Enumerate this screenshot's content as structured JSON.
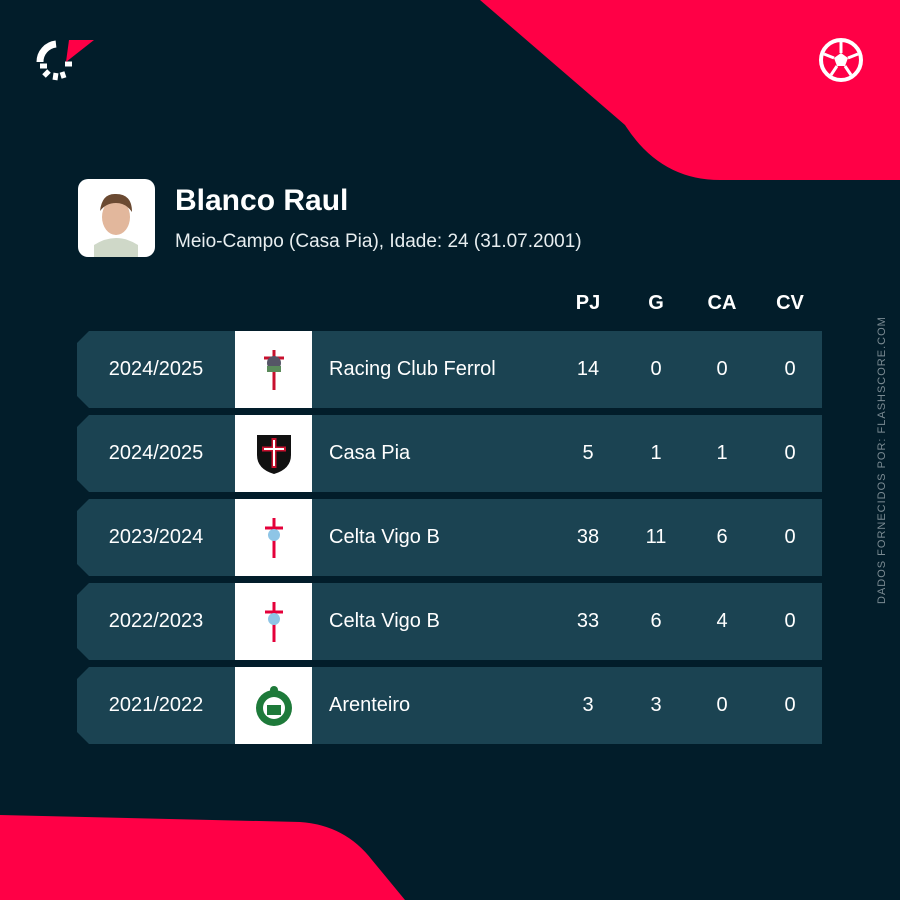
{
  "player": {
    "name": "Blanco Raul",
    "info": "Meio-Campo (Casa Pia), Idade: 24 (31.07.2001)"
  },
  "columns": [
    "PJ",
    "G",
    "CA",
    "CV"
  ],
  "rows": [
    {
      "season": "2024/2025",
      "team": "Racing Club Ferrol",
      "crest": "racing-ferrol-crest",
      "pj": "14",
      "g": "0",
      "ca": "0",
      "cv": "0"
    },
    {
      "season": "2024/2025",
      "team": "Casa Pia",
      "crest": "casa-pia-crest",
      "pj": "5",
      "g": "1",
      "ca": "1",
      "cv": "0"
    },
    {
      "season": "2023/2024",
      "team": "Celta Vigo B",
      "crest": "celta-vigo-crest",
      "pj": "38",
      "g": "11",
      "ca": "6",
      "cv": "0"
    },
    {
      "season": "2022/2023",
      "team": "Celta Vigo B",
      "crest": "celta-vigo-crest",
      "pj": "33",
      "g": "6",
      "ca": "4",
      "cv": "0"
    },
    {
      "season": "2021/2022",
      "team": "Arenteiro",
      "crest": "arenteiro-crest",
      "pj": "3",
      "g": "3",
      "ca": "0",
      "cv": "0"
    }
  ],
  "credit": "DADOS FORNECIDOS POR: FLASHSCORE.COM",
  "colors": {
    "background": "#021d2a",
    "accent": "#ff0046",
    "row": "#1b4352"
  }
}
